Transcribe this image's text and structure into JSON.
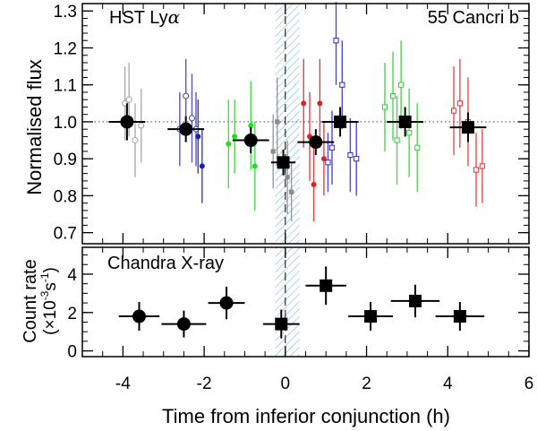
{
  "chart_data": [
    {
      "type": "scatter",
      "id": "lya",
      "title_left": "HST Ly",
      "title_left_symbol": "α",
      "title_right": "55 Cancri b",
      "ylabel": "Normalised flux",
      "xlim": [
        -5,
        6
      ],
      "ylim": [
        0.67,
        1.32
      ],
      "yticks": [
        0.7,
        0.8,
        0.9,
        1.0,
        1.1,
        1.2,
        1.3
      ],
      "ytick_labels": [
        "0.7",
        "0.8",
        "0.9",
        "1.0",
        "1.1",
        "1.2",
        "1.3"
      ],
      "reference_line": 1.0,
      "transit_window": [
        -0.25,
        0.35
      ],
      "conjunction": 0,
      "series": [
        {
          "name": "visit 1 (open grey circles)",
          "color": "#a0a0a0",
          "marker": "circle",
          "filled": false,
          "points": [
            [
              -3.95,
              1.05,
              0.1
            ],
            [
              -3.85,
              1.06,
              0.1
            ],
            [
              -3.7,
              0.95,
              0.1
            ],
            [
              -3.55,
              0.99,
              0.1
            ]
          ]
        },
        {
          "name": "visit 2 (open blue circles)",
          "color": "#3a3aaa",
          "marker": "circle",
          "filled": false,
          "points": [
            [
              -2.6,
              0.98,
              0.1
            ],
            [
              -2.45,
              1.07,
              0.1
            ],
            [
              -2.3,
              1.01,
              0.12
            ],
            [
              -2.2,
              0.98,
              0.1
            ]
          ]
        },
        {
          "name": "visit 2 (filled blue circles)",
          "color": "#1a1acc",
          "marker": "circle",
          "filled": true,
          "points": [
            [
              -2.15,
              0.96,
              0.1
            ],
            [
              -2.05,
              0.88,
              0.1
            ]
          ]
        },
        {
          "name": "visit 3 (filled green circles)",
          "color": "#22dd22",
          "marker": "circle",
          "filled": true,
          "points": [
            [
              -1.4,
              0.94,
              0.12
            ],
            [
              -1.25,
              0.96,
              0.1
            ],
            [
              -0.85,
              0.99,
              0.12
            ],
            [
              -0.75,
              0.88,
              0.12
            ]
          ]
        },
        {
          "name": "visit 3 (filled grey squares)",
          "color": "#8a8a8a",
          "marker": "square",
          "filled": true,
          "points": [
            [
              -0.3,
              0.92,
              0.1
            ],
            [
              -0.2,
              1.0,
              0.12
            ],
            [
              0.05,
              0.85,
              0.1
            ],
            [
              0.15,
              0.81,
              0.08
            ]
          ]
        },
        {
          "name": "visit 4 (filled red circles)",
          "color": "#dd2222",
          "marker": "circle",
          "filled": true,
          "points": [
            [
              0.45,
              1.05,
              0.12
            ],
            [
              0.6,
              0.96,
              0.12
            ],
            [
              0.7,
              0.83,
              0.1
            ],
            [
              0.85,
              1.05,
              0.12
            ],
            [
              0.95,
              0.9,
              0.1
            ]
          ]
        },
        {
          "name": "visit 4 (blue squares)",
          "color": "#2a2ad0",
          "marker": "square",
          "filled": false,
          "points": [
            [
              1.05,
              0.89,
              0.08
            ],
            [
              1.15,
              0.93,
              0.1
            ],
            [
              1.25,
              1.22,
              0.12
            ],
            [
              1.4,
              1.1,
              0.12
            ],
            [
              1.6,
              0.91,
              0.1
            ],
            [
              1.75,
              0.9,
              0.1
            ]
          ]
        },
        {
          "name": "visit 5 (open green squares)",
          "color": "#33cc33",
          "marker": "square",
          "filled": false,
          "points": [
            [
              2.45,
              1.04,
              0.12
            ],
            [
              2.65,
              1.07,
              0.12
            ],
            [
              2.75,
              0.95,
              0.12
            ],
            [
              2.85,
              1.1,
              0.12
            ],
            [
              3.05,
              0.97,
              0.12
            ],
            [
              3.25,
              0.93,
              0.12
            ]
          ]
        },
        {
          "name": "visit 6 (open red squares)",
          "color": "#dd3333",
          "marker": "square",
          "filled": false,
          "points": [
            [
              4.15,
              1.03,
              0.12
            ],
            [
              4.3,
              1.05,
              0.12
            ],
            [
              4.5,
              1.0,
              0.12
            ],
            [
              4.7,
              0.87,
              0.1
            ],
            [
              4.85,
              0.88,
              0.1
            ]
          ]
        },
        {
          "name": "binned (black)",
          "color": "#000000",
          "marker": "mixed",
          "filled": true,
          "points": [
            {
              "x": -3.9,
              "y": 1.0,
              "xerr": 0.45,
              "yerr": 0.05,
              "marker": "circle"
            },
            {
              "x": -2.45,
              "y": 0.98,
              "xerr": 0.45,
              "yerr": 0.035,
              "marker": "circle"
            },
            {
              "x": -0.85,
              "y": 0.95,
              "xerr": 0.45,
              "yerr": 0.035,
              "marker": "circle"
            },
            {
              "x": -0.05,
              "y": 0.89,
              "xerr": 0.3,
              "yerr": 0.035,
              "marker": "square"
            },
            {
              "x": 0.75,
              "y": 0.945,
              "xerr": 0.45,
              "yerr": 0.035,
              "marker": "circle"
            },
            {
              "x": 1.35,
              "y": 1.0,
              "xerr": 0.45,
              "yerr": 0.04,
              "marker": "square"
            },
            {
              "x": 2.95,
              "y": 1.0,
              "xerr": 0.45,
              "yerr": 0.04,
              "marker": "square"
            },
            {
              "x": 4.5,
              "y": 0.985,
              "xerr": 0.45,
              "yerr": 0.04,
              "marker": "square"
            }
          ]
        }
      ]
    },
    {
      "type": "scatter",
      "id": "xray",
      "title": "Chandra X-ray",
      "ylabel_line1": "Count rate",
      "ylabel_line2": "(×10",
      "ylabel_line2_exp": "-3",
      "ylabel_line2_unit": "s",
      "ylabel_line2_unit_exp": "-1",
      "ylabel_line2_end": ")",
      "xlabel": "Time from inferior conjunction (h)",
      "xlim": [
        -5,
        6
      ],
      "ylim": [
        -0.3,
        5.4
      ],
      "xticks": [
        -4,
        -2,
        0,
        2,
        4,
        6
      ],
      "xtick_labels": [
        "-4",
        "-2",
        "0",
        "2",
        "4",
        "6"
      ],
      "yticks": [
        0,
        2,
        4
      ],
      "ytick_labels": [
        "0",
        "2",
        "4"
      ],
      "transit_window": [
        -0.25,
        0.35
      ],
      "conjunction": 0,
      "series": [
        {
          "name": "binned (black)",
          "color": "#000000",
          "marker": "mixed",
          "filled": true,
          "points": [
            {
              "x": -3.6,
              "y": 1.8,
              "xerr": 0.5,
              "yerr": 0.75,
              "marker": "circle"
            },
            {
              "x": -2.5,
              "y": 1.4,
              "xerr": 0.55,
              "yerr": 0.7,
              "marker": "circle"
            },
            {
              "x": -1.45,
              "y": 2.5,
              "xerr": 0.45,
              "yerr": 0.85,
              "marker": "circle"
            },
            {
              "x": -0.1,
              "y": 1.4,
              "xerr": 0.45,
              "yerr": 0.75,
              "marker": "square"
            },
            {
              "x": 1.0,
              "y": 3.4,
              "xerr": 0.5,
              "yerr": 1.0,
              "marker": "square"
            },
            {
              "x": 2.1,
              "y": 1.8,
              "xerr": 0.55,
              "yerr": 0.75,
              "marker": "square"
            },
            {
              "x": 3.2,
              "y": 2.6,
              "xerr": 0.6,
              "yerr": 0.85,
              "marker": "square"
            },
            {
              "x": 4.3,
              "y": 1.8,
              "xerr": 0.6,
              "yerr": 0.75,
              "marker": "square"
            }
          ]
        }
      ]
    }
  ]
}
